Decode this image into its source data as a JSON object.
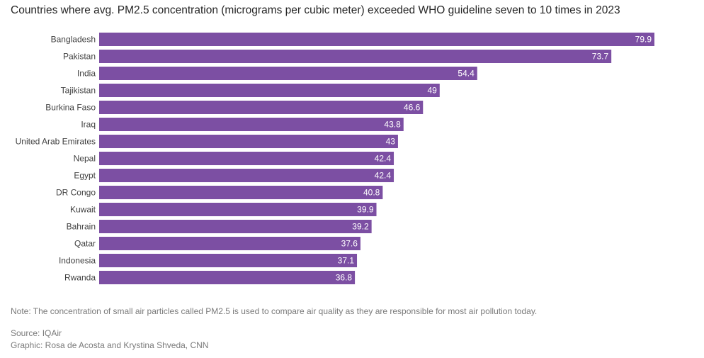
{
  "chart_data": {
    "type": "bar",
    "orientation": "horizontal",
    "title": "Countries where avg. PM2.5 concentration (micrograms per cubic meter) exceeded WHO guideline seven to 10 times in 2023",
    "categories": [
      "Bangladesh",
      "Pakistan",
      "India",
      "Tajikistan",
      "Burkina Faso",
      "Iraq",
      "United Arab Emirates",
      "Nepal",
      "Egypt",
      "DR Congo",
      "Kuwait",
      "Bahrain",
      "Qatar",
      "Indonesia",
      "Rwanda"
    ],
    "values": [
      79.9,
      73.7,
      54.4,
      49,
      46.6,
      43.8,
      43,
      42.4,
      42.4,
      40.8,
      39.9,
      39.2,
      37.6,
      37.1,
      36.8
    ],
    "value_labels": [
      "79.9",
      "73.7",
      "54.4",
      "49",
      "46.6",
      "43.8",
      "43",
      "42.4",
      "42.4",
      "40.8",
      "39.9",
      "39.2",
      "37.6",
      "37.1",
      "36.8"
    ],
    "xlim": [
      0,
      79.9
    ],
    "grid": false,
    "legend": "none",
    "bar_color": "#7c4fa3"
  },
  "footer": {
    "note": "Note: The concentration of small air particles called PM2.5 is used to compare air quality as they are responsible for most air pollution today.",
    "source": "Source: IQAir",
    "credit": "Graphic: Rosa de Acosta and Krystina Shveda, CNN"
  }
}
